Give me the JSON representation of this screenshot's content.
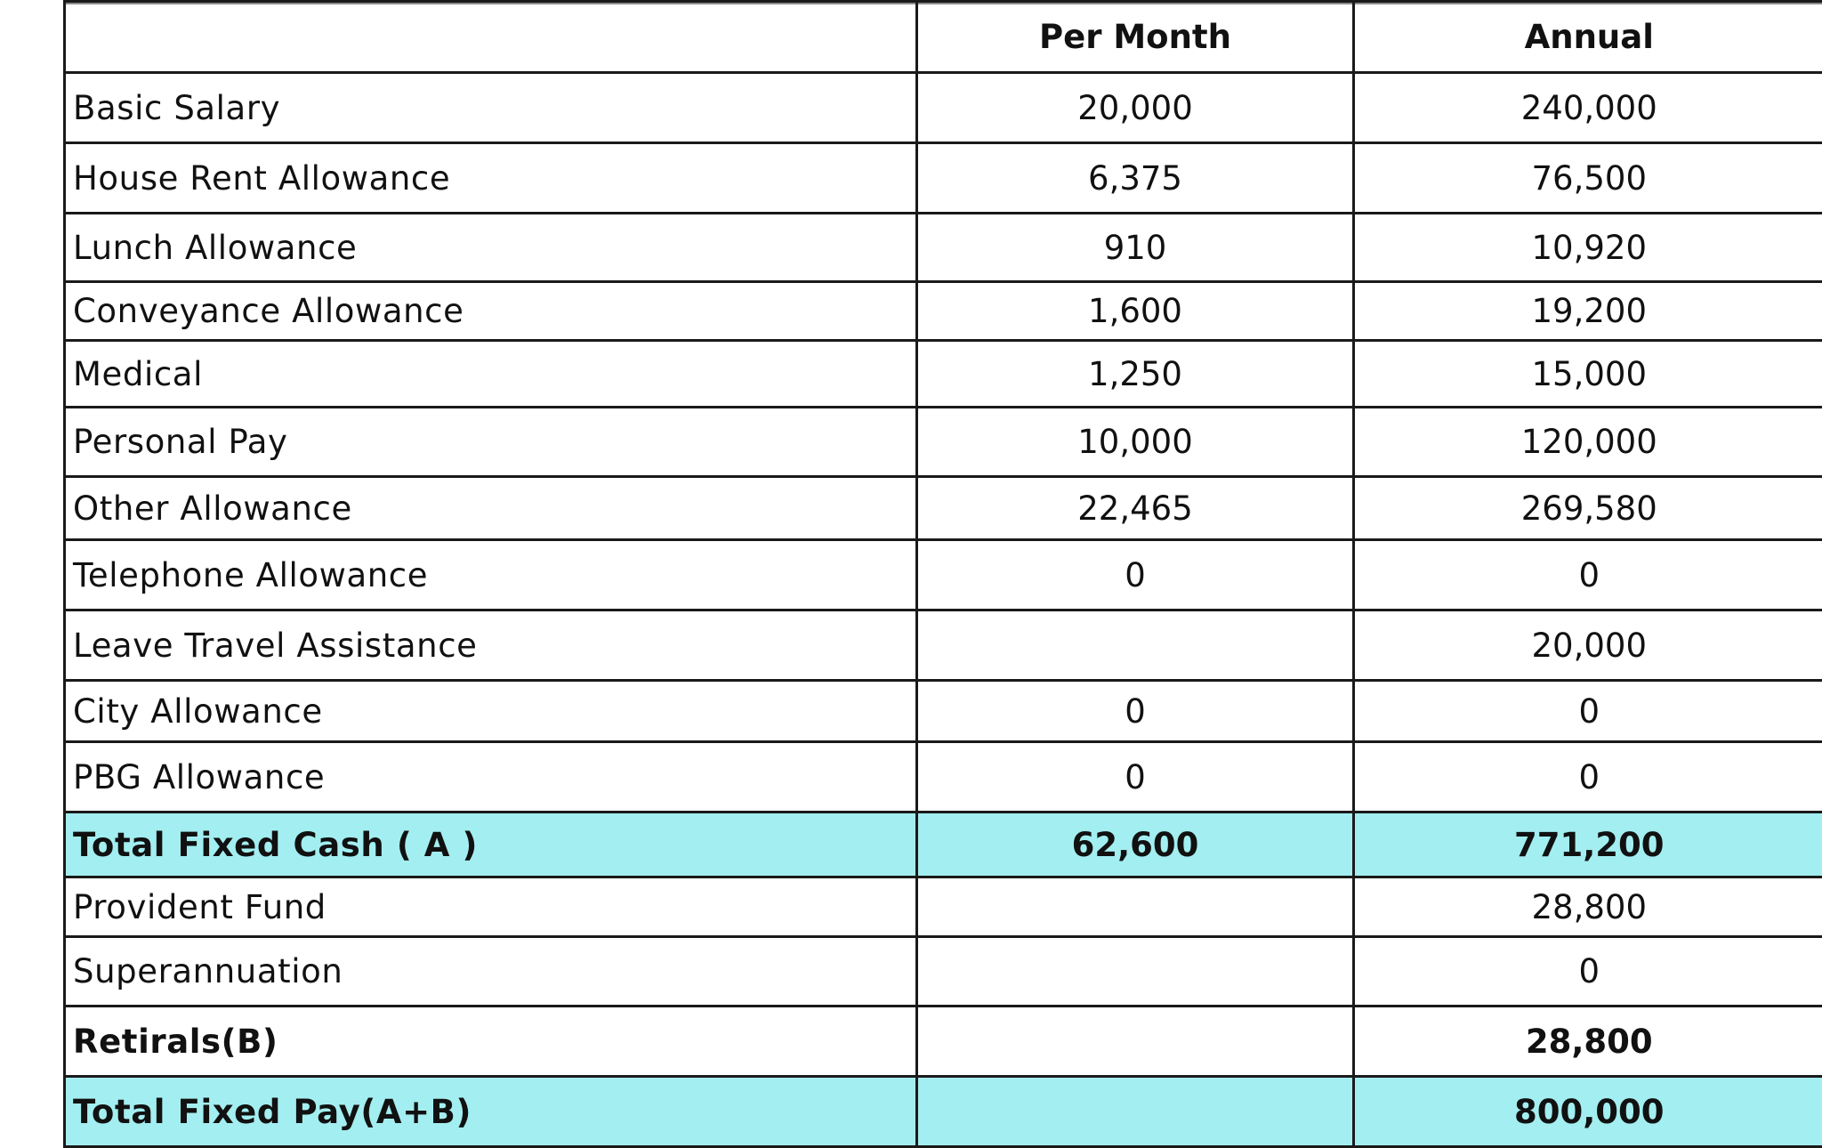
{
  "table": {
    "headers": [
      "",
      "Per Month",
      "Annual"
    ],
    "rows": [
      {
        "label": "Basic Salary",
        "per_month": "20,000",
        "annual": "240,000",
        "style": "normal"
      },
      {
        "label": "House Rent Allowance",
        "per_month": "6,375",
        "annual": "76,500",
        "style": "normal"
      },
      {
        "label": "Lunch Allowance",
        "per_month": "910",
        "annual": "10,920",
        "style": "normal"
      },
      {
        "label": "Conveyance Allowance",
        "per_month": "1,600",
        "annual": "19,200",
        "style": "normal"
      },
      {
        "label": "Medical",
        "per_month": "1,250",
        "annual": "15,000",
        "style": "normal"
      },
      {
        "label": "Personal Pay",
        "per_month": "10,000",
        "annual": "120,000",
        "style": "normal"
      },
      {
        "label": "Other Allowance",
        "per_month": "22,465",
        "annual": "269,580",
        "style": "normal"
      },
      {
        "label": "Telephone Allowance",
        "per_month": "0",
        "annual": "0",
        "style": "normal"
      },
      {
        "label": "Leave Travel Assistance",
        "per_month": "",
        "annual": "20,000",
        "style": "normal"
      },
      {
        "label": "City Allowance",
        "per_month": "0",
        "annual": "0",
        "style": "normal"
      },
      {
        "label": "PBG Allowance",
        "per_month": "0",
        "annual": "0",
        "style": "normal"
      },
      {
        "label": "Total Fixed Cash ( A )",
        "per_month": "62,600",
        "annual": "771,200",
        "style": "highlight"
      },
      {
        "label": "Provident Fund",
        "per_month": "",
        "annual": "28,800",
        "style": "normal"
      },
      {
        "label": "Superannuation",
        "per_month": "",
        "annual": "0",
        "style": "normal"
      },
      {
        "label": "Retirals(B)",
        "per_month": "",
        "annual": "28,800",
        "style": "bold"
      },
      {
        "label": "Total Fixed Pay(A+B)",
        "per_month": "",
        "annual": "800,000",
        "style": "highlight"
      }
    ]
  },
  "colors": {
    "highlight_row": "#a3eef0",
    "grid_line": "#1a1a1a"
  }
}
